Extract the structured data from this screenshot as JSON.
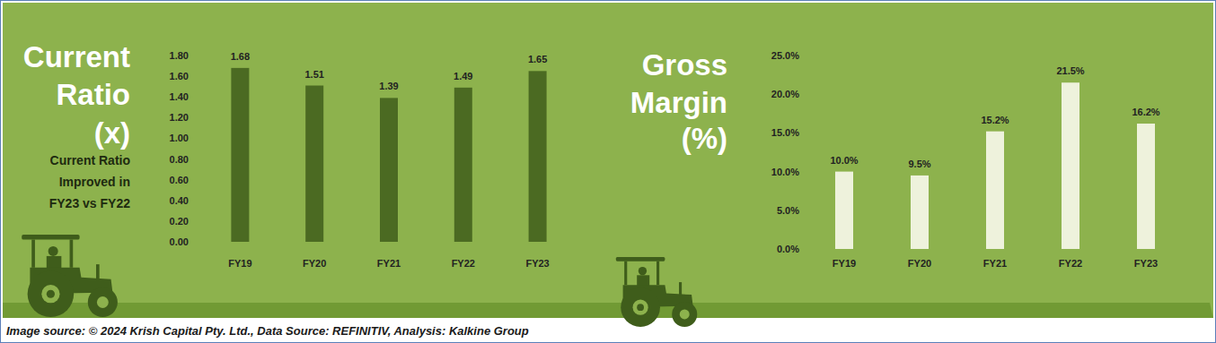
{
  "chart_data": [
    {
      "type": "bar",
      "title": "Current Ratio (x)",
      "annotation": "Current Ratio Improved in FY23 vs FY22",
      "categories": [
        "FY19",
        "FY20",
        "FY21",
        "FY22",
        "FY23"
      ],
      "values": [
        1.68,
        1.51,
        1.39,
        1.49,
        1.65
      ],
      "color": "#4b6a22",
      "ylim": [
        0,
        1.8
      ],
      "yticks": [
        {
          "value": 0,
          "label": "0.00"
        },
        {
          "value": 0.2,
          "label": "0.20"
        },
        {
          "value": 0.4,
          "label": "0.40"
        },
        {
          "value": 0.6,
          "label": "0.60"
        },
        {
          "value": 0.8,
          "label": "0.80"
        },
        {
          "value": 1,
          "label": "1.00"
        },
        {
          "value": 1.2,
          "label": "1.20"
        },
        {
          "value": 1.4,
          "label": "1.40"
        },
        {
          "value": 1.6,
          "label": "1.60"
        },
        {
          "value": 1.8,
          "label": "1.80"
        }
      ],
      "grid": false,
      "data_labels": true
    },
    {
      "type": "bar",
      "title": "Gross Margin (%)",
      "categories": [
        "FY19",
        "FY20",
        "FY21",
        "FY22",
        "FY23"
      ],
      "values": [
        10.0,
        9.5,
        15.2,
        21.5,
        16.2
      ],
      "value_labels": [
        "10.0%",
        "9.5%",
        "15.2%",
        "21.5%",
        "16.2%"
      ],
      "color": "#eef2dc",
      "ylim": [
        0,
        25
      ],
      "yticks": [
        {
          "value": 0,
          "label": "0.0%"
        },
        {
          "value": 5,
          "label": "5.0%"
        },
        {
          "value": 10,
          "label": "10.0%"
        },
        {
          "value": 15,
          "label": "15.0%"
        },
        {
          "value": 20,
          "label": "20.0%"
        },
        {
          "value": 25,
          "label": "25.0%"
        }
      ],
      "grid": false,
      "data_labels": true
    }
  ],
  "source": "Image source: © 2024 Krish Capital Pty. Ltd., Data Source: REFINITIV, Analysis: Kalkine Group"
}
